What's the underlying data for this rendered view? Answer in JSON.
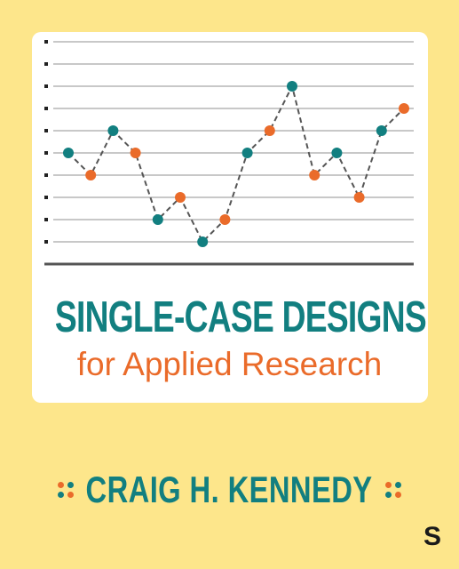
{
  "cover": {
    "title": "SINGLE-CASE DESIGNS",
    "subtitle": "for Applied Research",
    "author": "CRAIG H. KENNEDY",
    "publisher_logo": "S",
    "ornament_icon": "four-dot-ornament-icon"
  },
  "colors": {
    "background": "#fde68b",
    "teal": "#127f80",
    "orange": "#ea6b2a",
    "line": "#555555",
    "gridline": "#a8a8a8"
  },
  "chart_data": {
    "type": "line",
    "title": "",
    "xlabel": "",
    "ylabel": "",
    "grid": true,
    "ylim": [
      0,
      9
    ],
    "series": [
      {
        "x": [
          1,
          2,
          3,
          4,
          5,
          6,
          7,
          8,
          9,
          10,
          11,
          12,
          13,
          14,
          15,
          16
        ],
        "values": [
          4,
          3,
          5,
          4,
          1,
          2,
          0,
          1,
          4,
          5,
          7,
          3,
          4,
          2,
          5,
          6
        ],
        "marker_colors": [
          "teal",
          "orange",
          "teal",
          "orange",
          "teal",
          "orange",
          "teal",
          "orange",
          "teal",
          "orange",
          "teal",
          "orange",
          "teal",
          "orange",
          "teal",
          "orange"
        ]
      }
    ]
  }
}
